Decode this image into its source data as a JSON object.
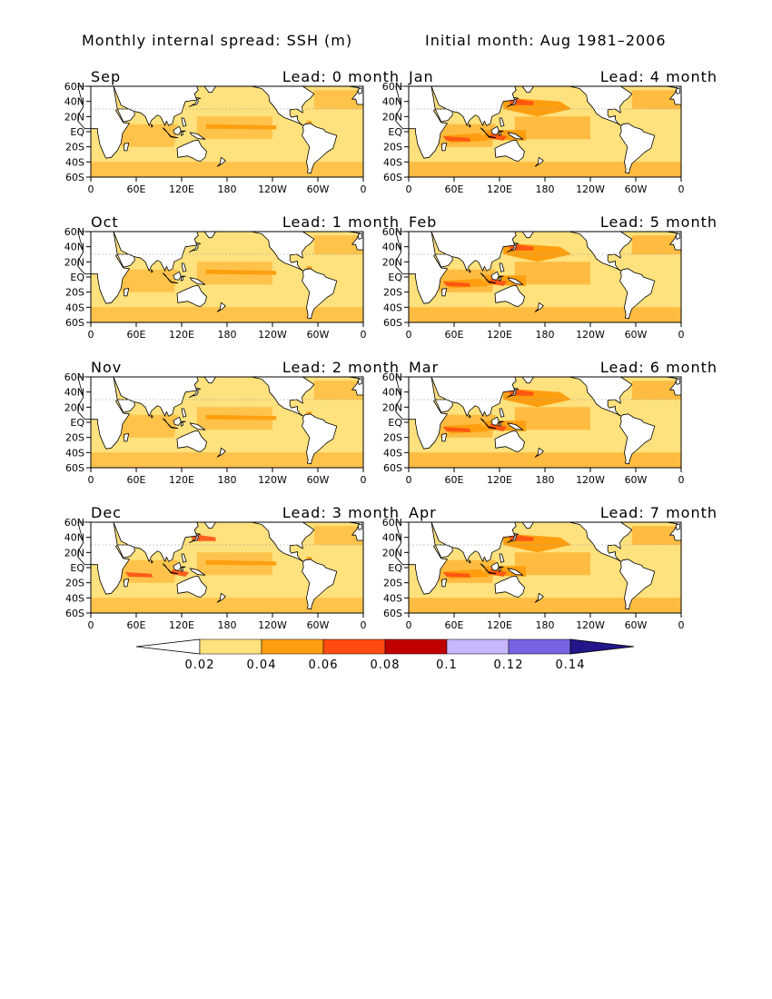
{
  "header": {
    "left_title": "Monthly internal spread: SSH (m)",
    "right_title": "Initial month: Aug 1981–2006"
  },
  "axes": {
    "lat_ticks": [
      "60N",
      "40N",
      "20N",
      "EQ",
      "20S",
      "40S",
      "60S"
    ],
    "lon_ticks": [
      "0",
      "60E",
      "120E",
      "180",
      "120W",
      "60W",
      "0"
    ]
  },
  "panels": [
    {
      "month": "Sep",
      "lead": "Lead: 0 month"
    },
    {
      "month": "Jan",
      "lead": "Lead: 4 month"
    },
    {
      "month": "Oct",
      "lead": "Lead: 1 month"
    },
    {
      "month": "Feb",
      "lead": "Lead: 5 month"
    },
    {
      "month": "Nov",
      "lead": "Lead: 2 month"
    },
    {
      "month": "Mar",
      "lead": "Lead: 6 month"
    },
    {
      "month": "Dec",
      "lead": "Lead: 3 month"
    },
    {
      "month": "Apr",
      "lead": "Lead: 7 month"
    }
  ],
  "colorbar": {
    "labels": [
      "0.02",
      "0.04",
      "0.06",
      "0.08",
      "0.1",
      "0.12",
      "0.14"
    ],
    "colors": [
      "#ffffff",
      "#ffe17d",
      "#ff9f10",
      "#ff4a10",
      "#c00000",
      "#c8b6ff",
      "#7563e0",
      "#22168a"
    ]
  },
  "colors": {
    "land": "#ffffff",
    "ocean_low": "#ffe17d",
    "ocean_mid": "#ff9f10",
    "ocean_high": "#ff4a10",
    "ocean_peak": "#c00000"
  }
}
